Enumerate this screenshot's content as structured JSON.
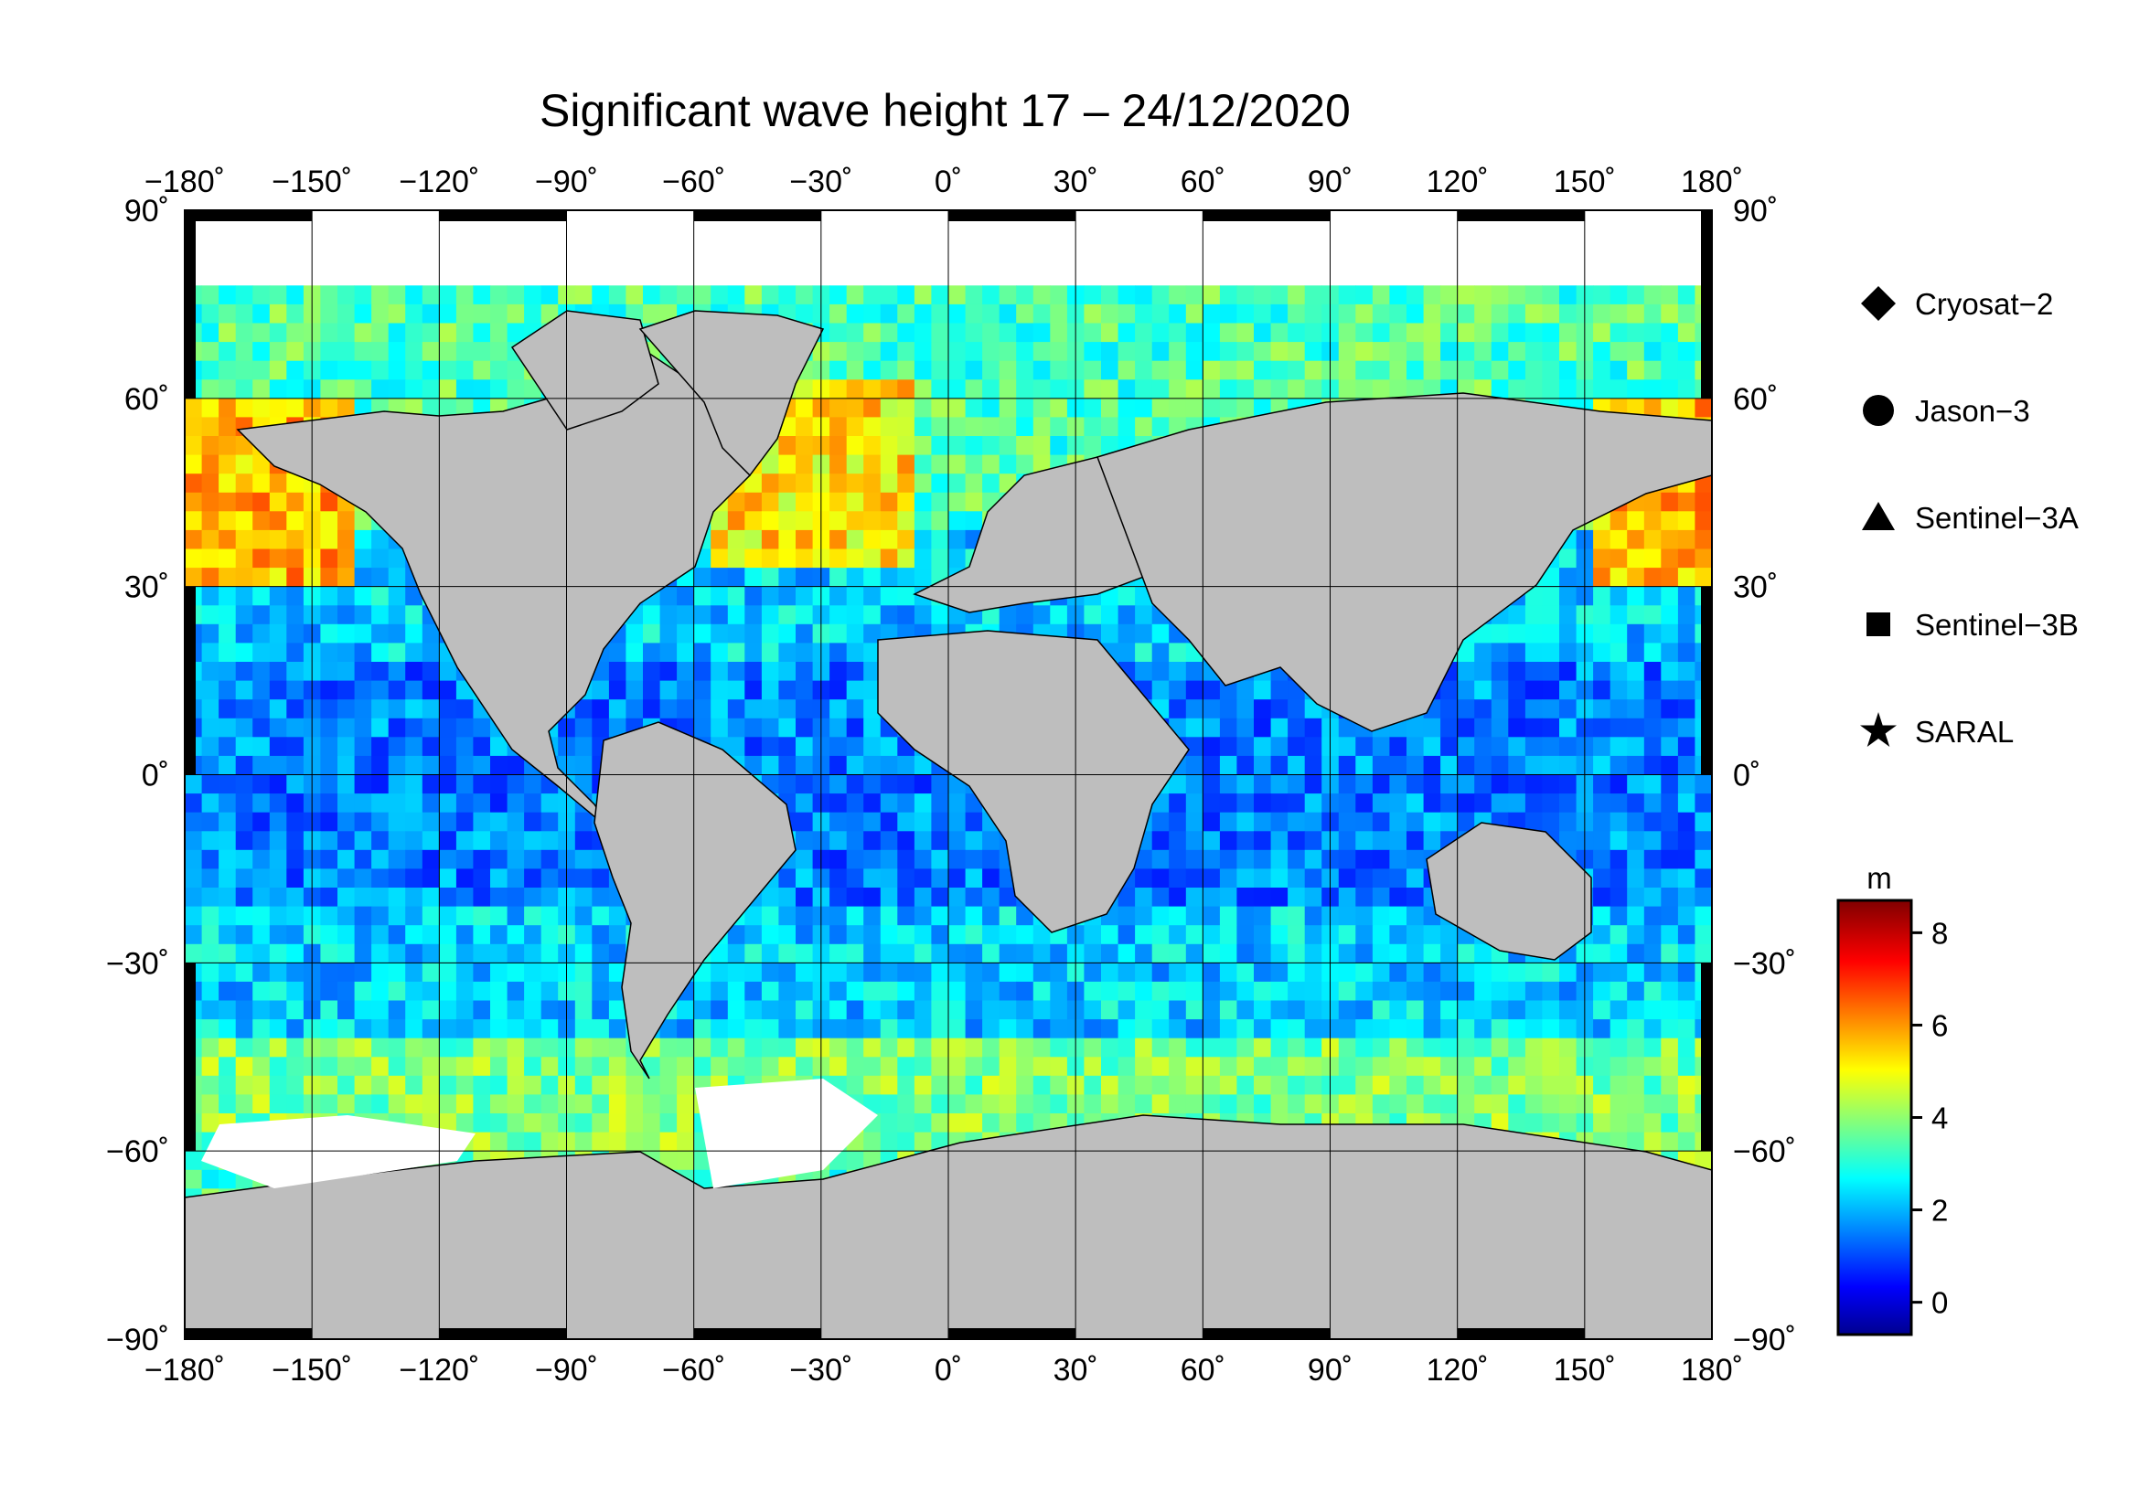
{
  "title": "Significant wave height 17 – 24/12/2020",
  "map": {
    "projection": "equirectangular",
    "lon_range": [
      -180,
      180
    ],
    "lat_range": [
      -90,
      90
    ],
    "lon_ticks": [
      "−180˚",
      "−150˚",
      "−120˚",
      "−90˚",
      "−60˚",
      "−30˚",
      "0˚",
      "30˚",
      "60˚",
      "90˚",
      "120˚",
      "150˚",
      "180˚"
    ],
    "lat_ticks": [
      "90˚",
      "60˚",
      "30˚",
      "0˚",
      "−30˚",
      "−60˚",
      "−90˚"
    ],
    "land_color": "#bebebe",
    "ice_color": "#ffffff",
    "grid": true
  },
  "legend": {
    "items": [
      {
        "label": "Cryosat−2",
        "symbol": "diamond"
      },
      {
        "label": "Jason−3",
        "symbol": "circle"
      },
      {
        "label": "Sentinel−3A",
        "symbol": "triangle"
      },
      {
        "label": "Sentinel−3B",
        "symbol": "square"
      },
      {
        "label": "SARAL",
        "symbol": "star"
      }
    ]
  },
  "colorbar": {
    "unit": "m",
    "range": [
      -0.7,
      8.7
    ],
    "ticks": [
      "0",
      "2",
      "4",
      "6",
      "8"
    ],
    "colormap": "jet"
  }
}
